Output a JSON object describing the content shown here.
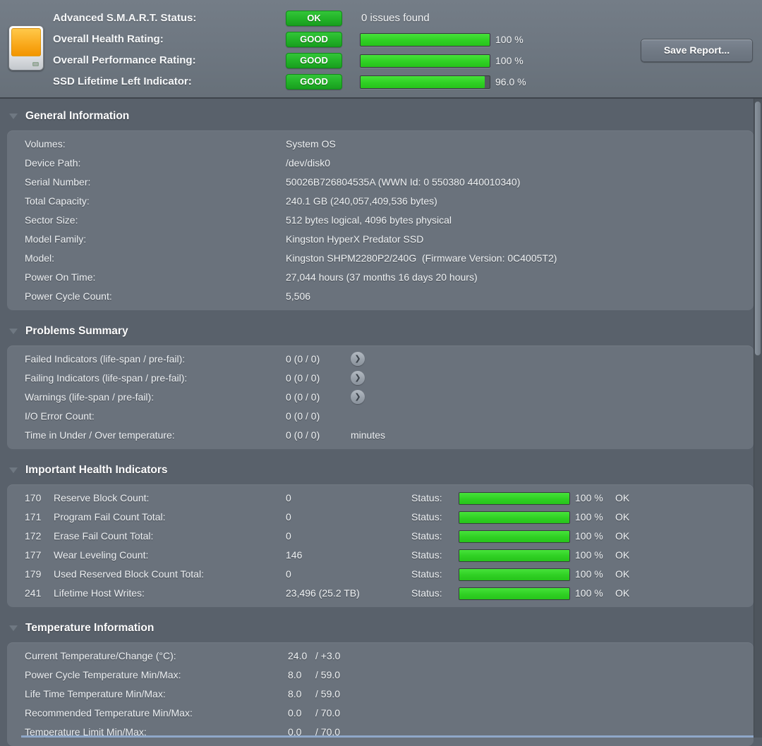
{
  "header": {
    "status_row": {
      "label": "Advanced S.M.A.R.T. Status:",
      "badge": "OK",
      "issues": "0 issues found"
    },
    "health_row": {
      "label": "Overall Health Rating:",
      "badge": "GOOD",
      "percent": 100,
      "percent_label": "100 %"
    },
    "performance_row": {
      "label": "Overall Performance Rating:",
      "badge": "GOOD",
      "percent": 100,
      "percent_label": "100 %"
    },
    "lifetime_row": {
      "label": "SSD Lifetime Left Indicator:",
      "badge": "GOOD",
      "percent": 96,
      "percent_label": "96.0 %"
    },
    "save_button": "Save Report..."
  },
  "general": {
    "title": "General Information",
    "rows": [
      {
        "label": "Volumes:",
        "value": "System OS"
      },
      {
        "label": "Device Path:",
        "value": "/dev/disk0"
      },
      {
        "label": "Serial Number:",
        "value": "50026B726804535A (WWN Id: 0 550380 440010340)"
      },
      {
        "label": "Total Capacity:",
        "value": "240.1 GB (240,057,409,536 bytes)"
      },
      {
        "label": "Sector Size:",
        "value": "512 bytes logical, 4096 bytes physical"
      },
      {
        "label": "Model Family:",
        "value": "Kingston HyperX Predator SSD"
      },
      {
        "label": "Model:",
        "value": "Kingston SHPM2280P2/240G  (Firmware Version: 0C4005T2)"
      },
      {
        "label": "Power On Time:",
        "value": "27,044 hours (37 months 16 days 20 hours)"
      },
      {
        "label": "Power Cycle Count:",
        "value": "5,506"
      }
    ]
  },
  "problems": {
    "title": "Problems Summary",
    "rows": [
      {
        "label": "Failed Indicators (life-span / pre-fail):",
        "value": "0 (0 / 0)"
      },
      {
        "label": "Failing Indicators (life-span / pre-fail):",
        "value": "0 (0 / 0)"
      },
      {
        "label": "Warnings (life-span / pre-fail):",
        "value": "0 (0 / 0)"
      },
      {
        "label": "I/O Error Count:",
        "value": "0 (0 / 0)"
      },
      {
        "label": "Time in Under / Over temperature:",
        "value": "0 (0 / 0)",
        "suffix": "minutes"
      }
    ],
    "arrow_glyph": "❯"
  },
  "health_indicators": {
    "title": "Important Health Indicators",
    "status_label": "Status:",
    "rows": [
      {
        "id": "170",
        "label": "Reserve Block Count:",
        "value": "0",
        "percent": 100,
        "percent_label": "100 %",
        "status": "OK"
      },
      {
        "id": "171",
        "label": "Program Fail Count Total:",
        "value": "0",
        "percent": 100,
        "percent_label": "100 %",
        "status": "OK"
      },
      {
        "id": "172",
        "label": "Erase Fail Count Total:",
        "value": "0",
        "percent": 100,
        "percent_label": "100 %",
        "status": "OK"
      },
      {
        "id": "177",
        "label": "Wear Leveling Count:",
        "value": "146",
        "percent": 100,
        "percent_label": "100 %",
        "status": "OK"
      },
      {
        "id": "179",
        "label": "Used Reserved Block Count Total:",
        "value": "0",
        "percent": 100,
        "percent_label": "100 %",
        "status": "OK"
      },
      {
        "id": "241",
        "label": "Lifetime Host Writes:",
        "value": "23,496 (25.2 TB)",
        "percent": 100,
        "percent_label": "100 %",
        "status": "OK"
      }
    ]
  },
  "temperature": {
    "title": "Temperature Information",
    "rows": [
      {
        "label": "Current Temperature/Change (°C):",
        "min": "24.0",
        "max": "/ +3.0"
      },
      {
        "label": "Power Cycle Temperature Min/Max:",
        "min": "8.0",
        "max": "/ 59.0"
      },
      {
        "label": "Life Time Temperature Min/Max:",
        "min": "8.0",
        "max": "/ 59.0"
      },
      {
        "label": "Recommended Temperature Min/Max:",
        "min": "0.0",
        "max": "/ 70.0"
      },
      {
        "label": "Temperature Limit Min/Max:",
        "min": "0.0",
        "max": "/ 70.0"
      }
    ]
  },
  "colors": {
    "badge_green": "#23b429",
    "bar_green": "#2fd023",
    "header_bg": "#6d7680",
    "section_bg": "#59616b",
    "card_bg": "#6a727c",
    "bottom_highlight": "#8fa8c9"
  }
}
